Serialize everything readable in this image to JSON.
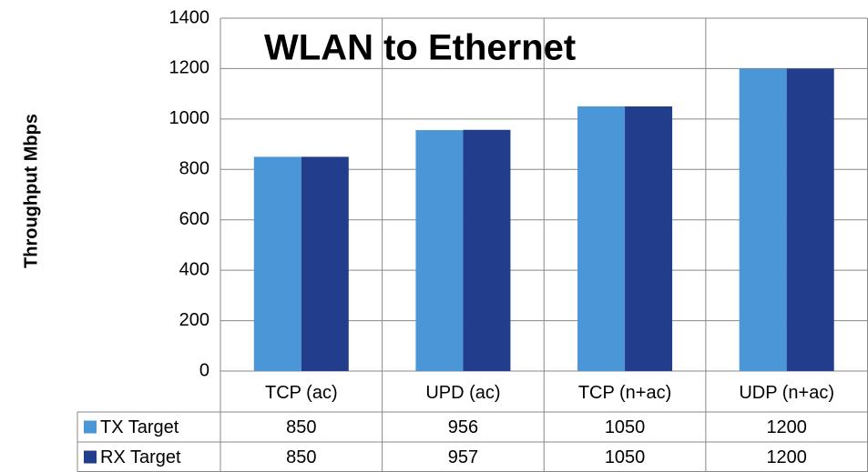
{
  "chart_data": {
    "type": "bar",
    "title": "WLAN to Ethernet",
    "y_label": "Throughput Mbps",
    "categories": [
      "TCP (ac)",
      "UPD (ac)",
      "TCP (n+ac)",
      "UDP (n+ac)"
    ],
    "series": [
      {
        "name": "TX Target",
        "color": "#4a96d6",
        "values": [
          850,
          956,
          1050,
          1200
        ]
      },
      {
        "name": "RX Target",
        "color": "#223d8c",
        "values": [
          850,
          957,
          1050,
          1200
        ]
      }
    ],
    "ylim": [
      0,
      1400
    ],
    "yticks": [
      0,
      200,
      400,
      600,
      800,
      1000,
      1200,
      1400
    ],
    "grid": true,
    "data_table": true
  }
}
